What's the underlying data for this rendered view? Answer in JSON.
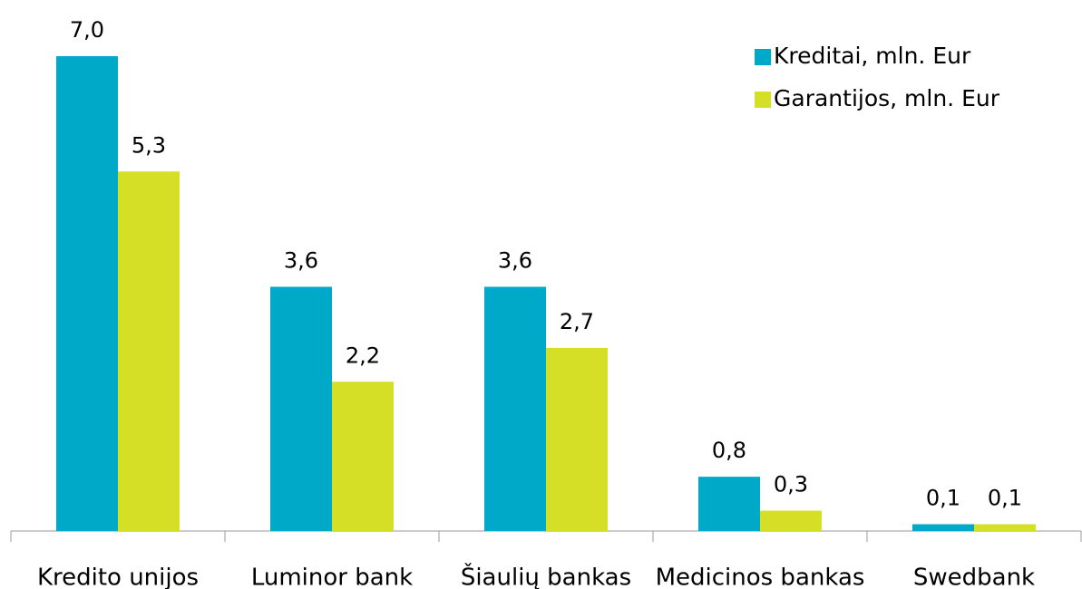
{
  "chart_data": {
    "type": "bar",
    "categories": [
      "Kredito unijos",
      "Luminor bank",
      "Šiaulių bankas",
      "Medicinos bankas",
      "Swedbank"
    ],
    "series": [
      {
        "name": "Kreditai, mln. Eur",
        "color": "#00a9c8",
        "values": [
          7.0,
          3.6,
          3.6,
          0.8,
          0.1
        ],
        "value_labels": [
          "7,0",
          "3,6",
          "3,6",
          "0,8",
          "0,1"
        ]
      },
      {
        "name": "Garantijos, mln. Eur",
        "color": "#d5df26",
        "values": [
          5.3,
          2.2,
          2.7,
          0.3,
          0.1
        ],
        "value_labels": [
          "5,3",
          "2,2",
          "2,7",
          "0,3",
          "0,1"
        ]
      }
    ],
    "ylim": [
      0,
      7
    ],
    "legend": "upper right"
  }
}
